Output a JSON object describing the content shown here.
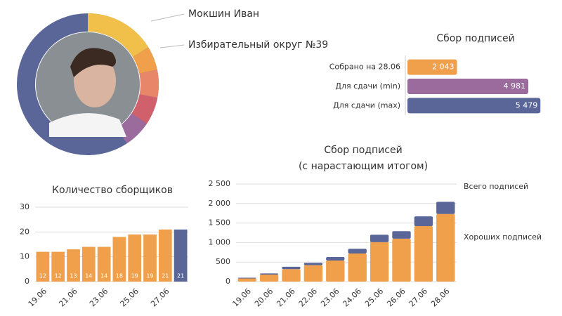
{
  "profile": {
    "name": "Мокшин Иван",
    "district": "Избирательный округ №39"
  },
  "chart_data": [
    {
      "type": "hbar",
      "title": "Сбор подписей",
      "categories": [
        "Собрано на 28.06",
        "Для сдачи (min)",
        "Для сдачи (max)"
      ],
      "values": [
        2043,
        4981,
        5479
      ],
      "value_labels": [
        "2 043",
        "4 981",
        "5 479"
      ],
      "colors": [
        "#f0a04b",
        "#9b6b9e",
        "#5a6698"
      ],
      "xlim": [
        0,
        5500
      ]
    },
    {
      "type": "bar",
      "title": "Количество сборщиков",
      "categories": [
        "19.06",
        null,
        "21.06",
        null,
        "23.06",
        null,
        "25.06",
        null,
        "27.06",
        null
      ],
      "values": [
        12,
        12,
        13,
        14,
        14,
        18,
        19,
        19,
        21,
        21
      ],
      "colors": [
        "#f0a04b",
        "#f0a04b",
        "#f0a04b",
        "#f0a04b",
        "#f0a04b",
        "#f0a04b",
        "#f0a04b",
        "#f0a04b",
        "#f0a04b",
        "#5a6698"
      ],
      "ylim": [
        0,
        30
      ],
      "yticks": [
        0,
        10,
        20,
        30
      ],
      "grid": true
    },
    {
      "type": "stacked_bar",
      "title": [
        "Сбор подписей",
        "(с нарастающим итогом)"
      ],
      "categories": [
        "19.06",
        "20.06",
        "21.06",
        "22.06",
        "23.06",
        "24.06",
        "25.06",
        "26.06",
        "27.06",
        "28.06"
      ],
      "series": [
        {
          "name": "Хороших подписей",
          "color": "#f0a04b",
          "values": [
            80,
            180,
            320,
            420,
            540,
            720,
            1010,
            1100,
            1420,
            1730
          ]
        },
        {
          "name": "Всего подписей",
          "color": "#5a6698",
          "values": [
            20,
            30,
            60,
            60,
            90,
            120,
            190,
            190,
            250,
            313
          ]
        }
      ],
      "ylim": [
        0,
        2500
      ],
      "yticks": [
        0,
        500,
        {
          "value": 1000,
          "label": "1 000"
        },
        {
          "value": 1500,
          "label": "1 500"
        },
        {
          "value": 2000,
          "label": "2 000"
        },
        {
          "value": 2500,
          "label": "2 500"
        }
      ],
      "grid": true,
      "legend": "right"
    }
  ]
}
